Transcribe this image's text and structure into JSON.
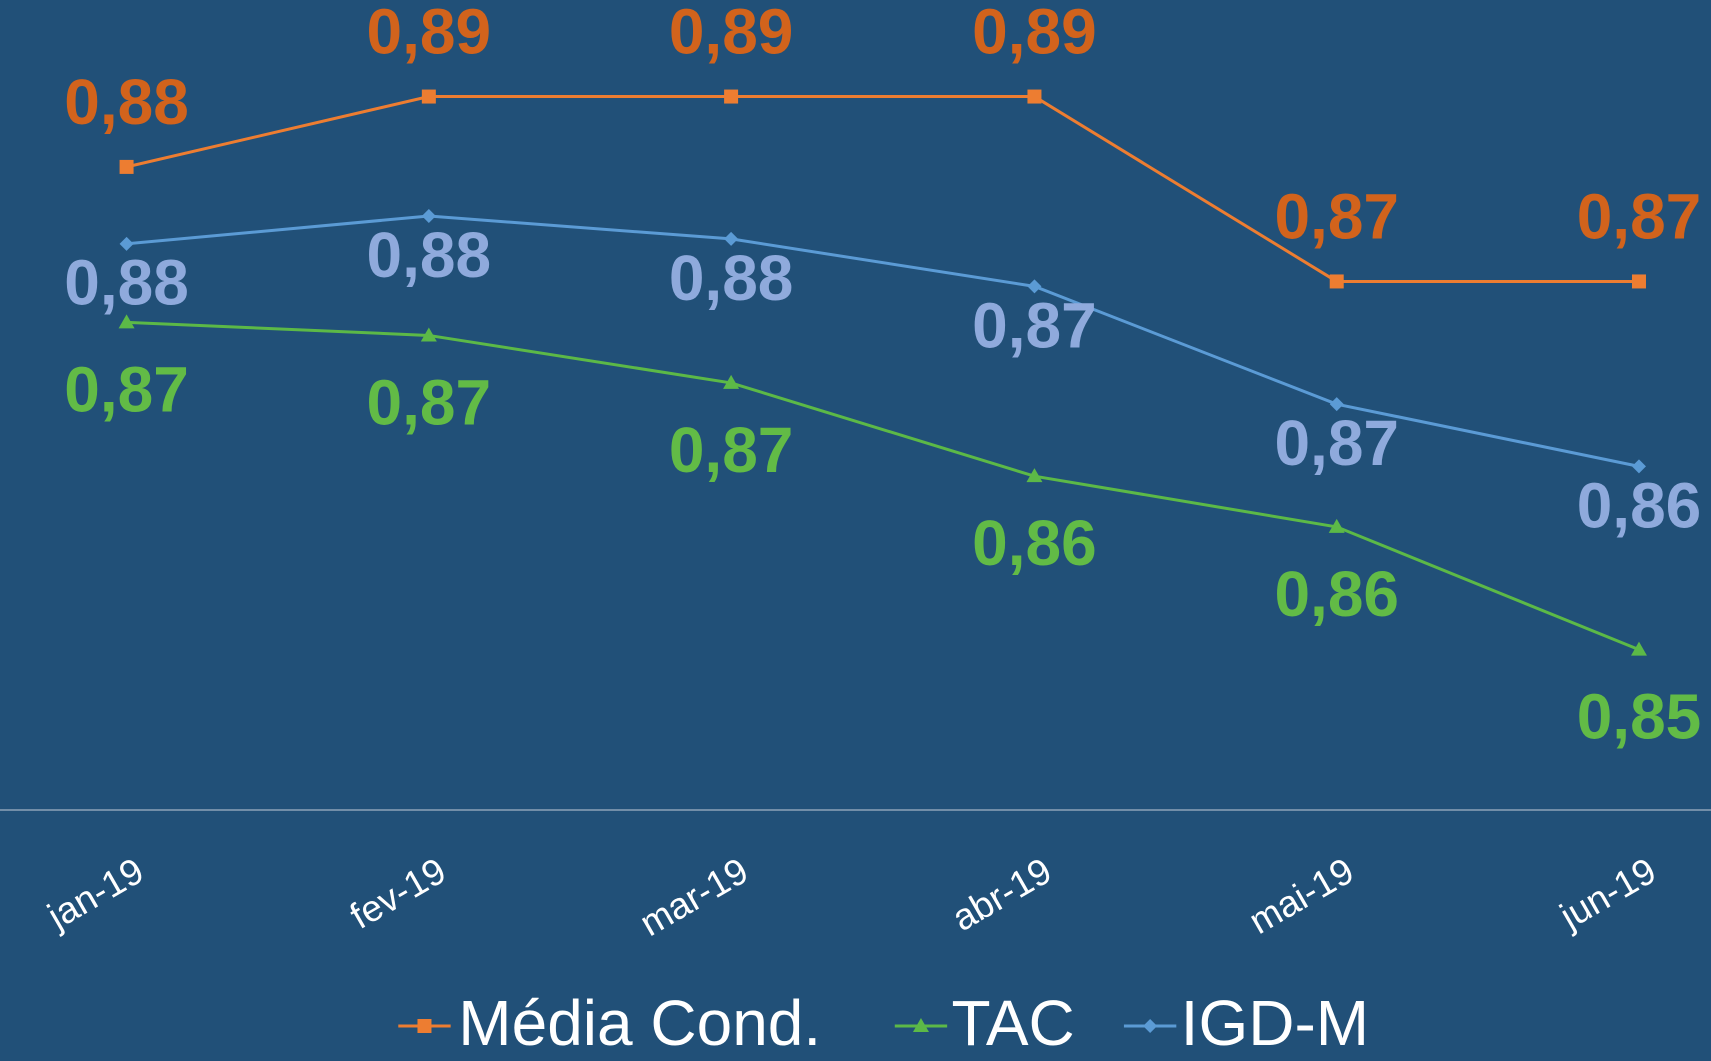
{
  "chart_data": {
    "type": "line",
    "categories": [
      "jan-19",
      "fev-19",
      "mar-19",
      "abr-19",
      "mai-19",
      "jun-19"
    ],
    "series": [
      {
        "name": "Média Cond.",
        "color": "#ed7d31",
        "label_color": "#d2631c",
        "marker": "square",
        "values": [
          0.8808,
          0.8851,
          0.8851,
          0.8851,
          0.8738,
          0.8738
        ],
        "value_labels": [
          "0,88",
          "0,89",
          "0,89",
          "0,89",
          "0,87",
          "0,87"
        ]
      },
      {
        "name": "TAC",
        "color": "#5cb947",
        "label_color": "#62bb46",
        "marker": "triangle",
        "values": [
          0.8713,
          0.8705,
          0.8676,
          0.8619,
          0.8588,
          0.8513
        ],
        "value_labels": [
          "0,87",
          "0,87",
          "0,87",
          "0,86",
          "0,86",
          "0,85"
        ]
      },
      {
        "name": "IGD-M",
        "color": "#5b9bd5",
        "label_color": "#8faadc",
        "marker": "diamond",
        "values": [
          0.8761,
          0.8778,
          0.8764,
          0.8735,
          0.8663,
          0.8625
        ],
        "value_labels": [
          "0,88",
          "0,88",
          "0,88",
          "0,87",
          "0,87",
          "0,86"
        ]
      }
    ],
    "ylim": [
      0.8415,
      0.891
    ],
    "legend": "bottom"
  }
}
